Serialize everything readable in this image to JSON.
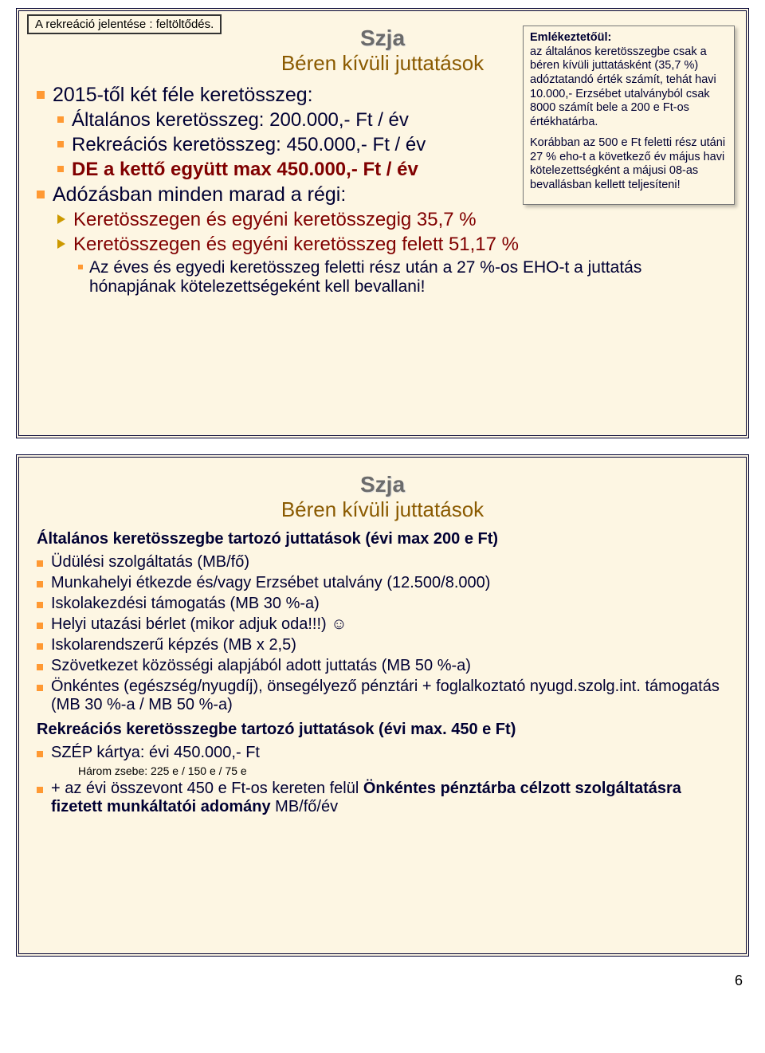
{
  "page_number": "6",
  "slide1": {
    "tag": "A rekreáció jelentése : feltöltődés.",
    "szja": "Szja",
    "subtitle": "Béren kívüli juttatások",
    "l1": "2015-től két féle keretösszeg:",
    "l2": "Általános keretösszeg: 200.000,- Ft / év",
    "l3": "Rekreációs keretösszeg: 450.000,- Ft / év",
    "l4": "DE a kettő együtt max 450.000,- Ft / év",
    "l5": "Adózásban minden marad a régi:",
    "l6": "Keretösszegen és egyéni keretösszegig 35,7 %",
    "l7": "Keretösszegen és egyéni keretösszeg felett 51,17 %",
    "l8": "Az éves és egyedi keretösszeg feletti rész után a 27 %-os EHO-t a juttatás hónapjának kötelezettségeként kell bevallani!",
    "callout_title": "Emlékeztetőül:",
    "callout_p1": "az általános keretösszegbe csak a béren kívüli juttatásként (35,7 %) adóztatandó érték számít, tehát havi 10.000,- Erzsébet utalványból csak 8000 számít bele a 200 e Ft-os értékhatárba.",
    "callout_p2": "Korábban az 500 e Ft feletti rész utáni 27 % eho-t a következő év május havi kötelezettségként a májusi 08-as bevallásban kellett teljesíteni!"
  },
  "slide2": {
    "szja": "Szja",
    "subtitle": "Béren kívüli juttatások",
    "h1": "Általános keretösszegbe tartozó juttatások (évi max 200 e Ft)",
    "i1": "Üdülési szolgáltatás (MB/fő)",
    "i2": "Munkahelyi étkezde és/vagy Erzsébet utalvány (12.500/8.000)",
    "i3": "Iskolakezdési támogatás (MB 30 %-a)",
    "i4": "Helyi utazási bérlet (mikor adjuk oda!!!) ☺",
    "i5": "Iskolarendszerű képzés (MB x 2,5)",
    "i6": "Szövetkezet közösségi alapjából adott juttatás (MB 50 %-a)",
    "i7": "Önkéntes (egészség/nyugdíj), önsegélyező pénztári + foglalkoztató nyugd.szolg.int. támogatás  (MB 30 %-a / MB 50 %-a)",
    "h2": "Rekreációs keretösszegbe tartozó juttatások (évi max. 450 e Ft)",
    "i8": "SZÉP kártya: évi 450.000,- Ft",
    "i8sub": "Három zsebe: 225 e / 150 e / 75 e",
    "i9a": "+ az évi összevont 450 e Ft-os kereten felül ",
    "i9b": "Önkéntes pénztárba célzott szolgáltatásra fizetett munkáltatói adomány",
    "i9c": " MB/fő/év"
  },
  "colors": {
    "slide_bg": "#fdf6e3",
    "bullet": "#ff9933",
    "subtitle": "#8a5a00",
    "accent": "#800000",
    "text": "#000033"
  }
}
